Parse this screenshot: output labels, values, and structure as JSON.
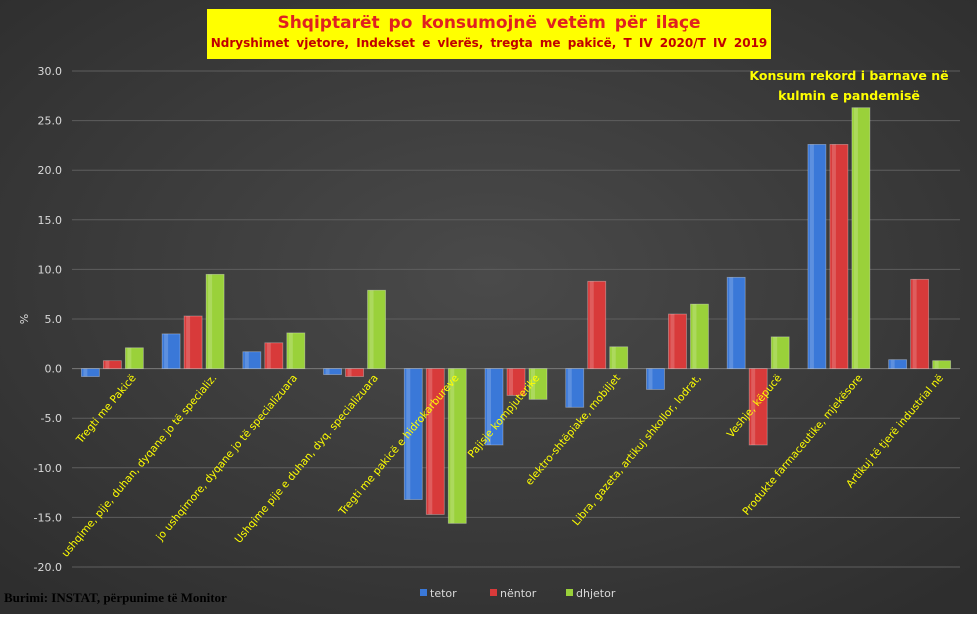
{
  "chart_data": {
    "type": "bar",
    "title": "Shqiptarët po konsumojnë vetëm për ilaçe",
    "subtitle": "Ndryshimet vjetore, Indekset e vlerës, tregta me pakicë, T IV 2020/T IV 2019",
    "ylabel": "%",
    "ylim": [
      -20,
      30
    ],
    "yticks": [
      "30.0",
      "25.0",
      "20.0",
      "15.0",
      "10.0",
      "5.0",
      "0.0",
      "-5.0",
      "-10.0",
      "-15.0",
      "-20.0"
    ],
    "grid": true,
    "legend_position": "bottom",
    "categories": [
      "Tregti me Pakicë",
      "ushqime, pije, duhan, dyqane jo të specializ.",
      "jo ushqimore, dyqane jo të specializuara",
      "Ushqime pije e duhan, dyq. specializuara",
      "Tregti me pakicë e hidrokarbureve",
      "Pajisje kompjuterike",
      "elektro-shtëpiake, mobiljet",
      "Libra, gazeta, artikuj shkollor, lodrat,",
      "Veshje, këpucë",
      "Produkte farmaceutike, mjekësore",
      "Artikuj të tjerë industrial në"
    ],
    "series": [
      {
        "name": "tetor",
        "color": "#3a78d8",
        "values": [
          -0.8,
          3.5,
          1.7,
          -0.6,
          -13.2,
          -7.7,
          -3.9,
          -2.1,
          9.2,
          22.6,
          0.9
        ]
      },
      {
        "name": "nëntor",
        "color": "#d83a3a",
        "values": [
          0.8,
          5.3,
          2.6,
          -0.8,
          -14.7,
          -2.7,
          8.8,
          5.5,
          -7.7,
          22.6,
          9.0
        ]
      },
      {
        "name": "dhjetor",
        "color": "#9ad13a",
        "values": [
          2.1,
          9.5,
          3.6,
          7.9,
          -15.6,
          -3.1,
          2.2,
          6.5,
          3.2,
          26.3,
          0.8
        ]
      }
    ],
    "annotation": [
      "Konsum rekord i barnave në",
      "kulmin e pandemisë"
    ]
  },
  "source": "Burimi: INSTAT, përpunime të Monitor",
  "colors": {
    "plot_bg": "#434343",
    "grid": "#5e5e5e",
    "text": "#d9d9d9",
    "category_text": "#ffff00",
    "annotation_text": "#ffff00"
  }
}
